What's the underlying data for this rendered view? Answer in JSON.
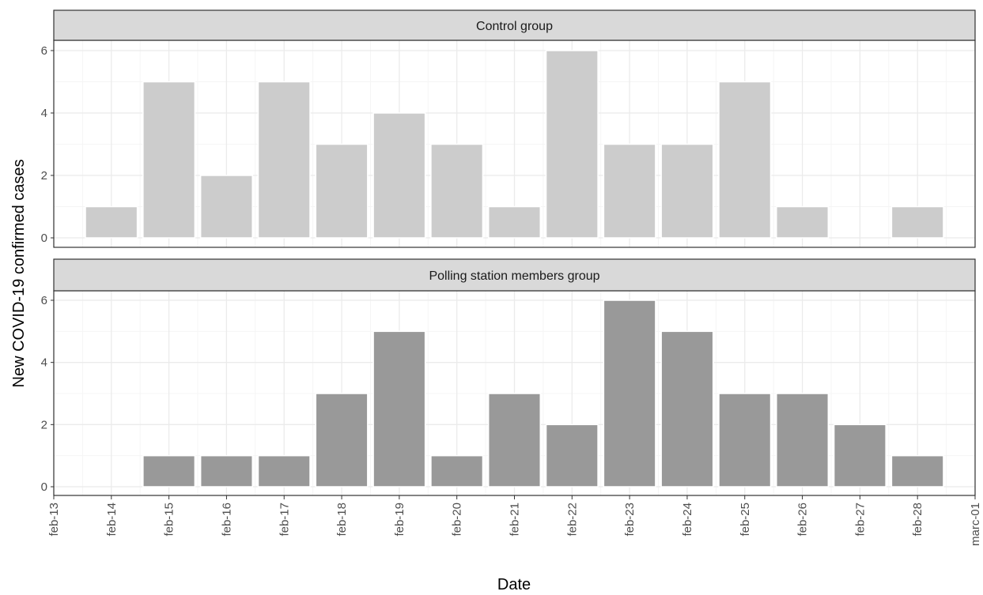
{
  "chart_data": {
    "type": "bar",
    "xlabel": "Date",
    "ylabel": "New COVID-19 confirmed cases",
    "ylim": [
      0,
      6.3
    ],
    "yticks": [
      0,
      2,
      4,
      6
    ],
    "x_ticks": [
      "feb-13",
      "feb-14",
      "feb-15",
      "feb-16",
      "feb-17",
      "feb-18",
      "feb-19",
      "feb-20",
      "feb-21",
      "feb-22",
      "feb-23",
      "feb-24",
      "feb-25",
      "feb-26",
      "feb-27",
      "feb-28",
      "marc-01"
    ],
    "categories": [
      "feb-14",
      "feb-15",
      "feb-16",
      "feb-17",
      "feb-18",
      "feb-19",
      "feb-20",
      "feb-21",
      "feb-22",
      "feb-23",
      "feb-24",
      "feb-25",
      "feb-26",
      "feb-27",
      "feb-28"
    ],
    "grid": true,
    "panels": [
      {
        "title": "Control group",
        "color": "#cccccc",
        "values": [
          1,
          5,
          2,
          5,
          3,
          4,
          3,
          1,
          6,
          3,
          3,
          5,
          1,
          0,
          1
        ]
      },
      {
        "title": "Polling station members group",
        "color": "#999999",
        "values": [
          0,
          1,
          1,
          1,
          3,
          5,
          1,
          3,
          2,
          6,
          5,
          3,
          3,
          2,
          1
        ]
      }
    ],
    "colors": {
      "strip_fill": "#d9d9d9",
      "panel_border": "#333333",
      "grid_major": "#ebebeb",
      "grid_minor": "#f5f5f5"
    }
  }
}
